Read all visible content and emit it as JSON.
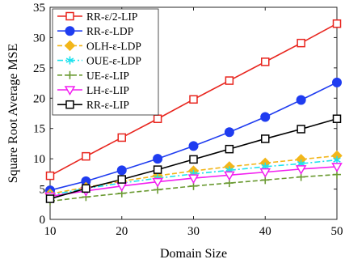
{
  "chart_data": {
    "type": "line",
    "xlabel": "Domain Size",
    "ylabel": "Square Root Average MSE",
    "x": [
      10,
      15,
      20,
      25,
      30,
      35,
      40,
      45,
      50
    ],
    "xlim": [
      10,
      50
    ],
    "ylim": [
      0,
      35
    ],
    "xticks": [
      10,
      20,
      30,
      40,
      50
    ],
    "yticks": [
      0,
      5,
      10,
      15,
      20,
      25,
      30,
      35
    ],
    "grid": false,
    "legend_position": "top-left",
    "series": [
      {
        "name": "RR-ε/2-LIP",
        "color": "#e8251e",
        "marker": "square-open",
        "dash": "solid",
        "values": [
          7.2,
          10.4,
          13.5,
          16.6,
          19.8,
          22.9,
          26.0,
          29.1,
          32.3
        ]
      },
      {
        "name": "RR-ε-LDP",
        "color": "#1f3cf0",
        "marker": "circle-filled",
        "dash": "solid",
        "values": [
          4.8,
          6.3,
          8.1,
          10.0,
          12.1,
          14.4,
          16.9,
          19.7,
          22.6
        ]
      },
      {
        "name": "OLH-ε-LDP",
        "color": "#f2b61a",
        "marker": "diamond-filled",
        "dash": "dashed",
        "values": [
          4.2,
          5.3,
          6.3,
          7.2,
          8.0,
          8.7,
          9.3,
          9.9,
          10.5
        ]
      },
      {
        "name": "OUE-ε-LDP",
        "color": "#1ee2ee",
        "marker": "asterisk",
        "dash": "dashdot",
        "values": [
          4.0,
          5.1,
          6.0,
          6.8,
          7.5,
          8.1,
          8.7,
          9.2,
          9.8
        ]
      },
      {
        "name": "UE-ε-LIP",
        "color": "#6a9a32",
        "marker": "plus",
        "dash": "dashed",
        "values": [
          3.0,
          3.7,
          4.3,
          4.9,
          5.5,
          6.0,
          6.5,
          7.0,
          7.4
        ]
      },
      {
        "name": "LH-ε-LIP",
        "color": "#f21ff0",
        "marker": "triangle-down-open",
        "dash": "solid",
        "values": [
          3.8,
          4.7,
          5.5,
          6.2,
          6.8,
          7.3,
          7.8,
          8.3,
          8.7
        ]
      },
      {
        "name": "RR-ε-LIP",
        "color": "#000000",
        "marker": "square-open",
        "dash": "solid",
        "values": [
          3.4,
          5.1,
          6.6,
          8.2,
          9.9,
          11.6,
          13.3,
          14.9,
          16.6
        ]
      }
    ]
  }
}
